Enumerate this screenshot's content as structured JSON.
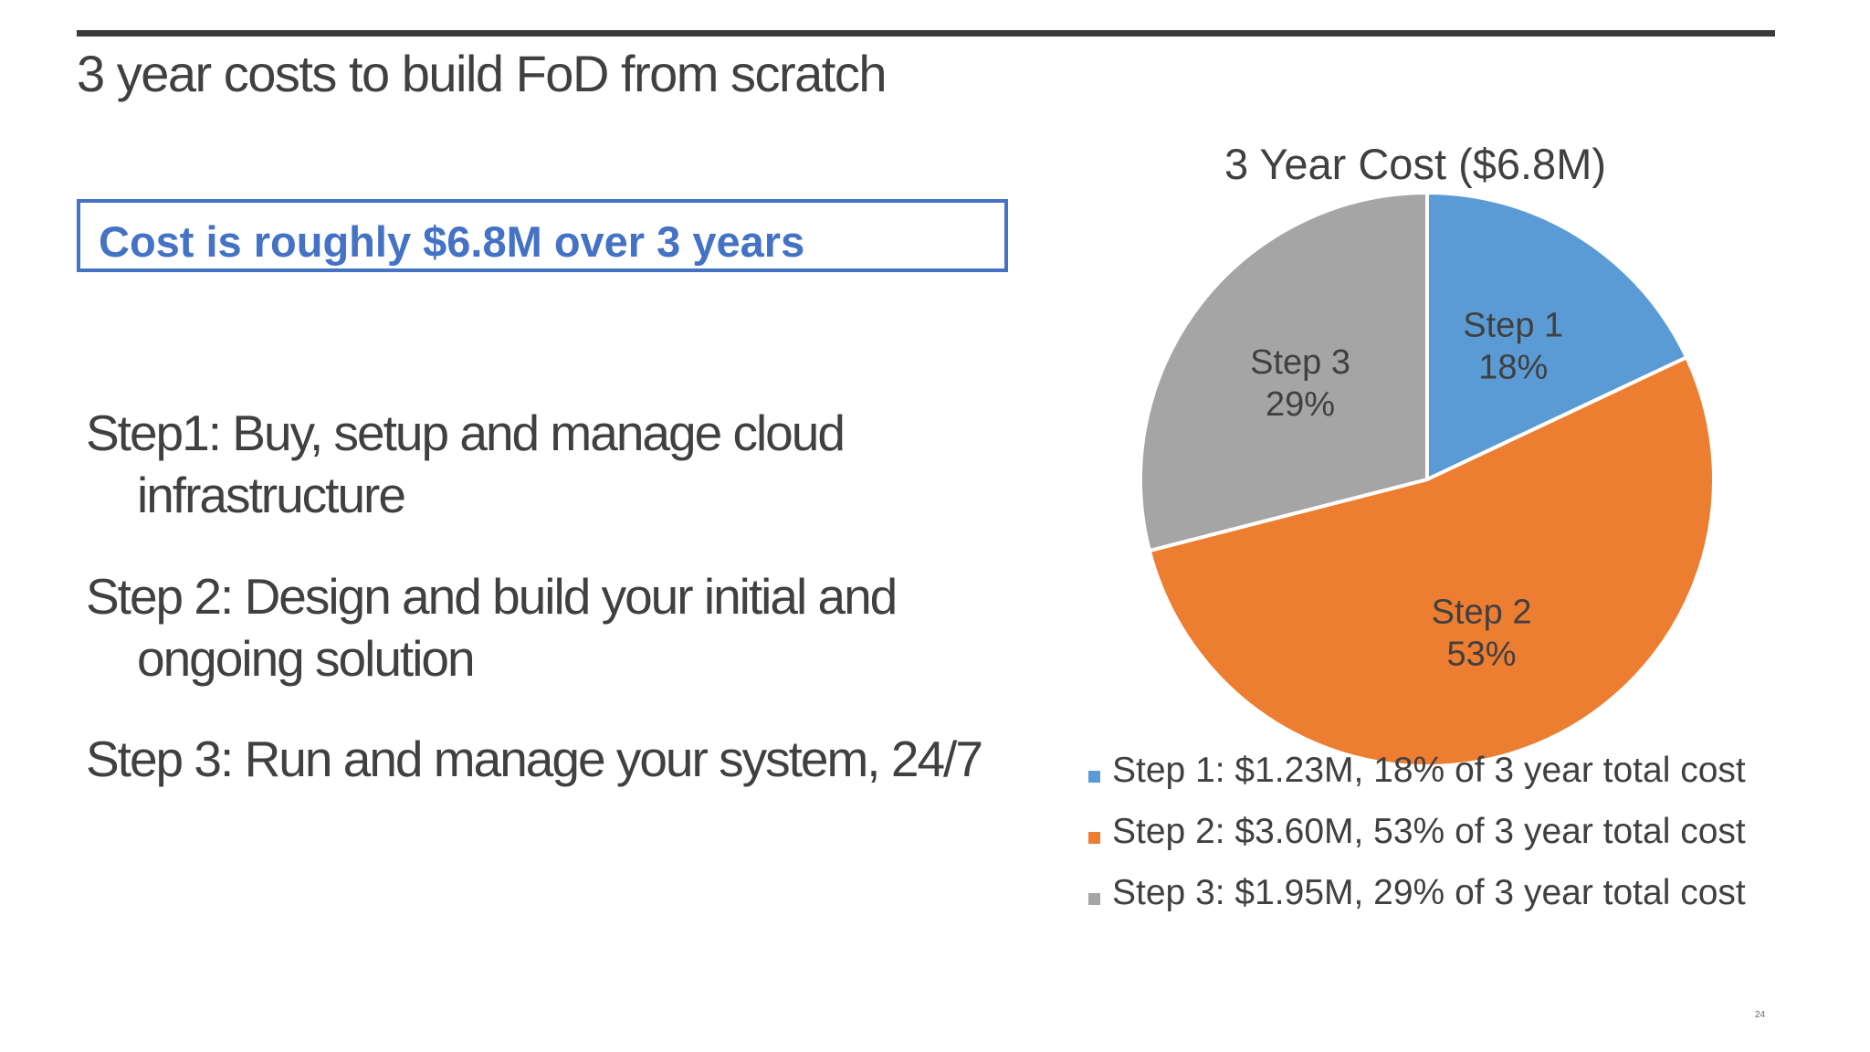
{
  "slide": {
    "title": "3 year costs to build FoD from scratch",
    "callout": "Cost is roughly $6.8M over 3 years",
    "page_number": "24"
  },
  "steps": [
    {
      "head": "Step1",
      "sep": ":",
      "line1": " Buy, setup and manage cloud",
      "line2": "infrastructure"
    },
    {
      "head": "Step 2",
      "sep": ":",
      "line1": " Design and build your initial and",
      "line2": "ongoing solution"
    },
    {
      "head": "Step 3",
      "sep": ":",
      "line1": " Run and manage your system, 24/7",
      "line2": ""
    }
  ],
  "colors": {
    "accent": "#4472c4",
    "step1": "#5b9bd5",
    "step2": "#ed7d31",
    "step3": "#a5a5a5"
  },
  "chart_data": {
    "type": "pie",
    "title": "3 Year Cost ($6.8M)",
    "categories": [
      "Step 1",
      "Step 2",
      "Step 3"
    ],
    "values": [
      18,
      53,
      29
    ],
    "value_labels": [
      "18%",
      "53%",
      "29%"
    ],
    "colors": [
      "#5b9bd5",
      "#ed7d31",
      "#a5a5a5"
    ],
    "start_angle_deg": 0,
    "direction": "clockwise",
    "legend_position": "bottom",
    "legend": [
      "Step 1: $1.23M, 18% of 3 year total cost",
      "Step 2: $3.60M, 53% of 3 year total cost",
      "Step 3: $1.95M, 29% of 3 year total cost"
    ]
  }
}
